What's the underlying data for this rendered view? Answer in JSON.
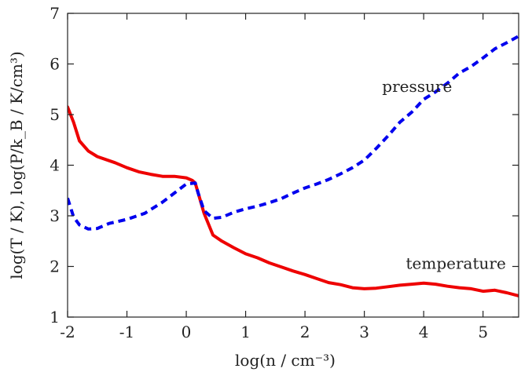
{
  "chart_data": {
    "type": "line",
    "title": "",
    "xlabel": "log(n / cm⁻³)",
    "ylabel": "log(T / K), log(P/k_B / K/cm³)",
    "xlim": [
      -2,
      5.6
    ],
    "ylim": [
      1,
      7
    ],
    "xticks": [
      -2,
      -1,
      0,
      1,
      2,
      3,
      4,
      5
    ],
    "xtick_labels": [
      "-2",
      "-1",
      "0",
      "1",
      "2",
      "3",
      "4",
      "5"
    ],
    "yticks": [
      1,
      2,
      3,
      4,
      5,
      6,
      7
    ],
    "ytick_labels": [
      "1",
      "2",
      "3",
      "4",
      "5",
      "6",
      "7"
    ],
    "grid": false,
    "annotations": [
      {
        "text": "pressure",
        "x": 3.3,
        "y": 5.45
      },
      {
        "text": "temperature",
        "x": 3.7,
        "y": 1.95
      }
    ],
    "series": [
      {
        "key": "temperature",
        "color": "#ee0000",
        "dash": "solid",
        "x": [
          -2.0,
          -1.9,
          -1.8,
          -1.65,
          -1.5,
          -1.2,
          -1.0,
          -0.8,
          -0.6,
          -0.4,
          -0.2,
          0.0,
          0.1,
          0.15,
          0.2,
          0.3,
          0.45,
          0.6,
          0.8,
          1.0,
          1.2,
          1.4,
          1.6,
          1.8,
          2.0,
          2.2,
          2.4,
          2.6,
          2.8,
          3.0,
          3.2,
          3.4,
          3.6,
          3.8,
          4.0,
          4.2,
          4.4,
          4.6,
          4.8,
          5.0,
          5.2,
          5.4,
          5.6
        ],
        "y": [
          5.15,
          4.85,
          4.48,
          4.28,
          4.17,
          4.05,
          3.95,
          3.87,
          3.82,
          3.78,
          3.78,
          3.75,
          3.7,
          3.65,
          3.45,
          3.05,
          2.62,
          2.5,
          2.37,
          2.25,
          2.17,
          2.07,
          1.99,
          1.91,
          1.84,
          1.76,
          1.68,
          1.64,
          1.58,
          1.56,
          1.57,
          1.6,
          1.63,
          1.65,
          1.67,
          1.65,
          1.61,
          1.58,
          1.56,
          1.51,
          1.53,
          1.48,
          1.42
        ]
      },
      {
        "key": "pressure",
        "color": "#0000ee",
        "dash": "dashed",
        "x": [
          -2.0,
          -1.9,
          -1.8,
          -1.65,
          -1.5,
          -1.3,
          -1.0,
          -0.7,
          -0.4,
          -0.2,
          0.0,
          0.15,
          0.2,
          0.3,
          0.45,
          0.6,
          0.8,
          1.0,
          1.2,
          1.4,
          1.6,
          1.8,
          2.0,
          2.2,
          2.4,
          2.6,
          2.8,
          3.0,
          3.2,
          3.4,
          3.6,
          3.8,
          4.0,
          4.2,
          4.4,
          4.6,
          4.8,
          5.0,
          5.2,
          5.4,
          5.6
        ],
        "y": [
          3.35,
          2.98,
          2.82,
          2.74,
          2.75,
          2.85,
          2.93,
          3.05,
          3.27,
          3.45,
          3.63,
          3.65,
          3.45,
          3.1,
          2.95,
          2.97,
          3.07,
          3.14,
          3.19,
          3.26,
          3.34,
          3.45,
          3.55,
          3.63,
          3.72,
          3.83,
          3.95,
          4.1,
          4.33,
          4.58,
          4.85,
          5.05,
          5.3,
          5.45,
          5.62,
          5.82,
          5.95,
          6.12,
          6.3,
          6.42,
          6.55
        ]
      }
    ]
  }
}
